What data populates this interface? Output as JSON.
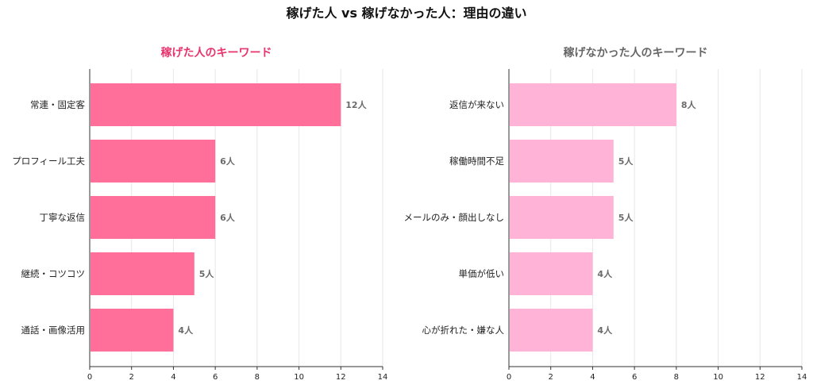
{
  "title": "稼げた人 vs 稼げなかった人：理由の違い",
  "chart_data": [
    {
      "type": "bar",
      "orientation": "horizontal",
      "title": "稼げた人のキーワード",
      "title_color": "#e8336d",
      "bar_color": "#ff6f9a",
      "categories": [
        "常連・固定客",
        "プロフィール工夫",
        "丁寧な返信",
        "継続・コツコツ",
        "通話・画像活用"
      ],
      "values": [
        12,
        6,
        6,
        5,
        4
      ],
      "value_labels": [
        "12人",
        "6人",
        "6人",
        "5人",
        "4人"
      ],
      "xlim": [
        0,
        14
      ],
      "xticks": [
        0,
        2,
        4,
        6,
        8,
        10,
        12,
        14
      ],
      "grid": "vertical"
    },
    {
      "type": "bar",
      "orientation": "horizontal",
      "title": "稼げなかった人のキーワード",
      "title_color": "#666666",
      "bar_color": "#ffb3d6",
      "categories": [
        "返信が来ない",
        "稼働時間不足",
        "メールのみ・顔出しなし",
        "単価が低い",
        "心が折れた・嫌な人"
      ],
      "values": [
        8,
        5,
        5,
        4,
        4
      ],
      "value_labels": [
        "8人",
        "5人",
        "5人",
        "4人",
        "4人"
      ],
      "xlim": [
        0,
        14
      ],
      "xticks": [
        0,
        2,
        4,
        6,
        8,
        10,
        12,
        14
      ],
      "grid": "vertical"
    }
  ]
}
